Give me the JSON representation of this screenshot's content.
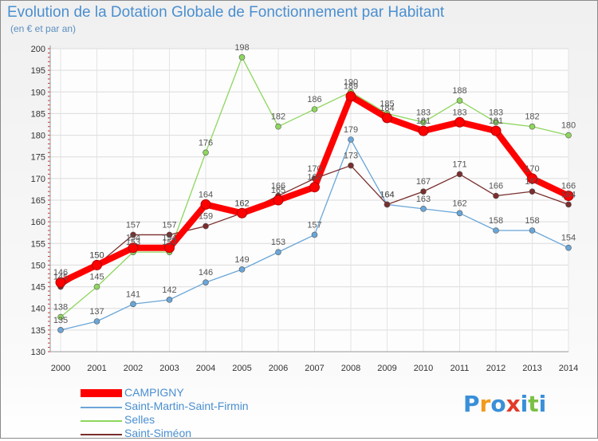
{
  "chart_data": {
    "type": "line",
    "title": "Evolution de la Dotation Globale de Fonctionnement par Habitant",
    "subtitle": "(en € et par an)",
    "x": [
      "2000",
      "2001",
      "2002",
      "2003",
      "2004",
      "2005",
      "2006",
      "2007",
      "2008",
      "2009",
      "2010",
      "2011",
      "2012",
      "2013",
      "2014"
    ],
    "ylim": [
      130,
      200
    ],
    "yticks": [
      130,
      135,
      140,
      145,
      150,
      155,
      160,
      165,
      170,
      175,
      180,
      185,
      190,
      195,
      200
    ],
    "series": [
      {
        "name": "CAMPIGNY",
        "color": "#ff0000",
        "values": [
          146,
          150,
          154,
          154,
          164,
          162,
          165,
          168,
          189,
          184,
          181,
          183,
          181,
          170,
          166
        ]
      },
      {
        "name": "Saint-Martin-Saint-Firmin",
        "color": "#6aa6d8",
        "values": [
          135,
          137,
          141,
          142,
          146,
          149,
          153,
          157,
          179,
          164,
          163,
          162,
          158,
          158,
          154
        ]
      },
      {
        "name": "Selles",
        "color": "#8ed65e",
        "values": [
          138,
          145,
          153,
          153,
          176,
          198,
          182,
          186,
          190,
          185,
          183,
          188,
          183,
          182,
          180
        ]
      },
      {
        "name": "Saint-Siméon",
        "color": "#7a2e2e",
        "values": [
          145,
          150,
          157,
          157,
          159,
          162,
          166,
          170,
          173,
          164,
          167,
          171,
          166,
          167,
          164
        ]
      }
    ]
  },
  "logo": {
    "text": "Proxiti",
    "letters": [
      "P",
      "r",
      "o",
      "x",
      "i",
      "t",
      "i"
    ],
    "colors": [
      "#3a8fd8",
      "#f39a1a",
      "#3a8fd8",
      "#e23a2a",
      "#3a8fd8",
      "#7bc043",
      "#3a8fd8"
    ]
  }
}
